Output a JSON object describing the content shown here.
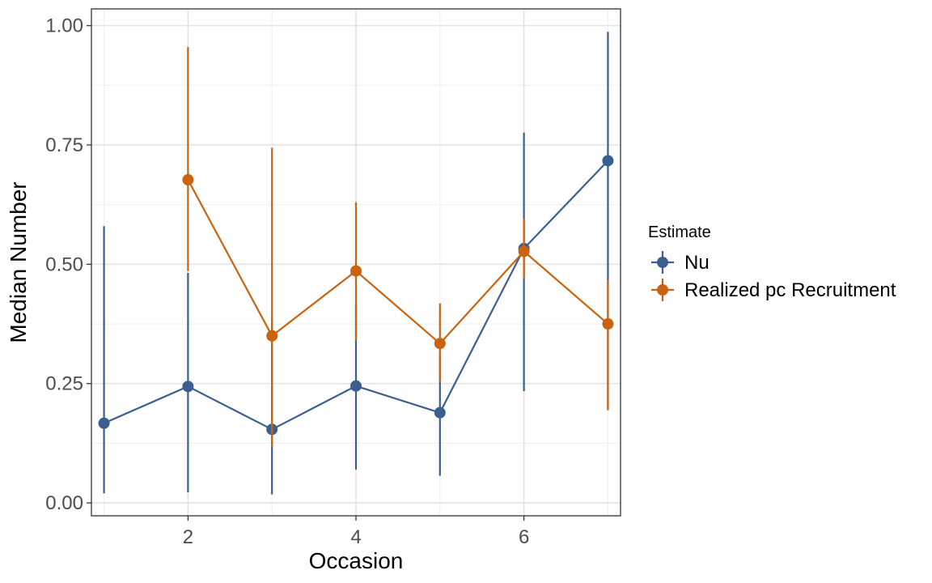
{
  "chart_data": {
    "type": "line",
    "xlabel": "Occasion",
    "ylabel": "Median Number",
    "xlim": [
      0.85,
      7.15
    ],
    "ylim": [
      -0.027,
      1.035
    ],
    "x_ticks": [
      2,
      4,
      6
    ],
    "x_tick_labels": [
      "2",
      "4",
      "6"
    ],
    "y_ticks": [
      0.0,
      0.25,
      0.5,
      0.75,
      1.0
    ],
    "y_tick_labels": [
      "0.00",
      "0.25",
      "0.50",
      "0.75",
      "1.00"
    ],
    "grid": true,
    "legend": {
      "title": "Estimate",
      "position": "right"
    },
    "series": [
      {
        "name": "Nu",
        "color": "#3a5f8f",
        "points": [
          {
            "x": 1,
            "y": 0.167,
            "lower": 0.02,
            "upper": 0.58
          },
          {
            "x": 2,
            "y": 0.244,
            "lower": 0.022,
            "upper": 0.482
          },
          {
            "x": 3,
            "y": 0.154,
            "lower": 0.018,
            "upper": 0.39
          },
          {
            "x": 4,
            "y": 0.245,
            "lower": 0.07,
            "upper": 0.416
          },
          {
            "x": 5,
            "y": 0.189,
            "lower": 0.057,
            "upper": 0.31
          },
          {
            "x": 6,
            "y": 0.533,
            "lower": 0.234,
            "upper": 0.776
          },
          {
            "x": 7,
            "y": 0.717,
            "lower": 0.2,
            "upper": 0.987
          }
        ]
      },
      {
        "name": "Realized pc Recruitment",
        "color": "#c9630f",
        "points": [
          {
            "x": 2,
            "y": 0.677,
            "lower": 0.486,
            "upper": 0.955
          },
          {
            "x": 3,
            "y": 0.35,
            "lower": 0.117,
            "upper": 0.744
          },
          {
            "x": 4,
            "y": 0.486,
            "lower": 0.34,
            "upper": 0.63
          },
          {
            "x": 5,
            "y": 0.334,
            "lower": 0.254,
            "upper": 0.418
          },
          {
            "x": 6,
            "y": 0.527,
            "lower": 0.47,
            "upper": 0.595
          },
          {
            "x": 7,
            "y": 0.375,
            "lower": 0.194,
            "upper": 0.467
          }
        ]
      }
    ]
  }
}
